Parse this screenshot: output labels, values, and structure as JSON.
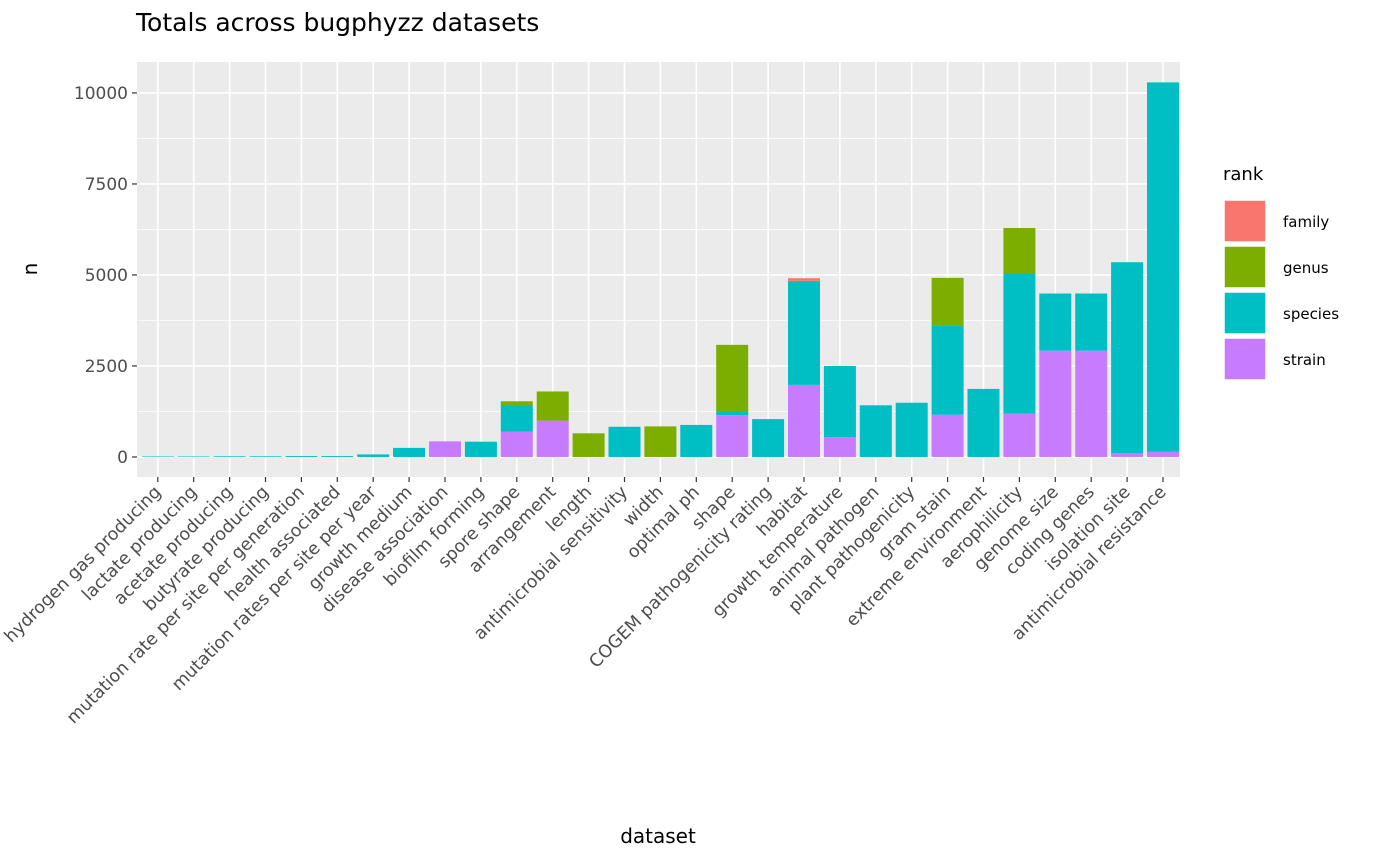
{
  "chart_data": {
    "type": "bar",
    "stacked": true,
    "title": "Totals across bugphyzz datasets",
    "xlabel": "dataset",
    "ylabel": "n",
    "ylim": [
      -550,
      10850
    ],
    "yticks": [
      0,
      2500,
      5000,
      7500,
      10000
    ],
    "ytick_labels": [
      "0",
      "2500",
      "5000",
      "7500",
      "10000"
    ],
    "grid": true,
    "legend": {
      "title": "rank",
      "placement": "right"
    },
    "categories": [
      "hydrogen gas producing",
      "lactate producing",
      "acetate producing",
      "butyrate producing",
      "mutation rate per site per generation",
      "health associated",
      "mutation rates per site per year",
      "growth medium",
      "disease association",
      "biofilm forming",
      "spore shape",
      "arrangement",
      "length",
      "antimicrobial sensitivity",
      "width",
      "optimal ph",
      "shape",
      "COGEM pathogenicity rating",
      "habitat",
      "growth temperature",
      "animal pathogen",
      "plant pathogenicity",
      "gram stain",
      "extreme environment",
      "aerophilicity",
      "genome size",
      "coding genes",
      "isolation site",
      "antimicrobial resistance"
    ],
    "series": [
      {
        "name": "strain",
        "color": "#C77CFF",
        "values": [
          0,
          0,
          0,
          0,
          0,
          0,
          0,
          0,
          430,
          0,
          700,
          1000,
          0,
          0,
          0,
          0,
          1150,
          0,
          1980,
          540,
          0,
          0,
          1160,
          0,
          1190,
          2920,
          2920,
          100,
          140
        ]
      },
      {
        "name": "species",
        "color": "#00BFC4",
        "values": [
          15,
          15,
          20,
          20,
          25,
          25,
          70,
          250,
          0,
          420,
          700,
          0,
          0,
          830,
          0,
          880,
          100,
          1040,
          2840,
          1960,
          1420,
          1490,
          2440,
          1870,
          3850,
          1570,
          1570,
          5250,
          10150
        ]
      },
      {
        "name": "genus",
        "color": "#7CAE00",
        "values": [
          0,
          0,
          0,
          0,
          0,
          0,
          0,
          0,
          0,
          0,
          130,
          800,
          650,
          0,
          840,
          0,
          1830,
          0,
          20,
          0,
          0,
          0,
          1320,
          0,
          1250,
          0,
          0,
          0,
          0
        ]
      },
      {
        "name": "family",
        "color": "#F8766D",
        "values": [
          0,
          0,
          0,
          0,
          0,
          0,
          0,
          0,
          0,
          0,
          0,
          0,
          0,
          0,
          0,
          0,
          0,
          0,
          70,
          0,
          0,
          0,
          0,
          0,
          0,
          0,
          0,
          0,
          0
        ]
      }
    ],
    "legend_order": [
      "family",
      "genus",
      "species",
      "strain"
    ]
  },
  "colors": {
    "panel_bg": "#EBEBEB",
    "grid": "#FFFFFF",
    "axis_text": "#4D4D4D"
  }
}
